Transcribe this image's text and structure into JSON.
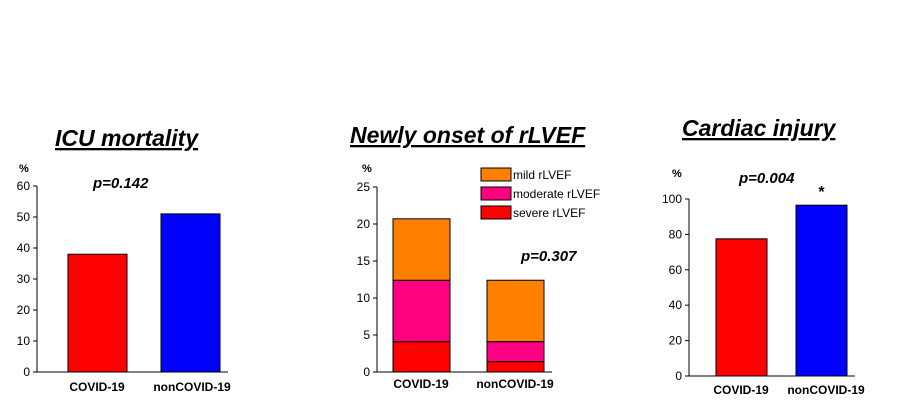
{
  "chart_data": [
    {
      "type": "bar",
      "title": "ICU mortality",
      "annotation": "p=0.142",
      "unit_label": "%",
      "categories": [
        "COVID-19",
        "nonCOVID-19"
      ],
      "values": [
        38,
        51
      ],
      "colors": [
        "#ff0000",
        "#0000ff"
      ],
      "yticks": [
        0,
        10,
        20,
        30,
        40,
        50,
        60
      ],
      "ylim": [
        0,
        60
      ],
      "grid": false
    },
    {
      "type": "bar",
      "stacked": true,
      "title": "Newly onset of rLVEF",
      "annotation": "p=0.307",
      "unit_label": "%",
      "categories": [
        "COVID-19",
        "nonCOVID-19"
      ],
      "series": [
        {
          "name": "severe rLVEF",
          "color": "#ff0000",
          "values": [
            4.1,
            1.4
          ]
        },
        {
          "name": "moderate rLVEF",
          "color": "#ff0080",
          "values": [
            8.3,
            2.7
          ]
        },
        {
          "name": "mild rLVEF",
          "color": "#ff8000",
          "values": [
            8.3,
            8.3
          ]
        }
      ],
      "legend": {
        "position": "top-right",
        "order": [
          "mild rLVEF",
          "moderate rLVEF",
          "severe rLVEF"
        ]
      },
      "yticks": [
        0,
        5,
        10,
        15,
        20,
        25
      ],
      "ylim": [
        0,
        25
      ],
      "grid": false
    },
    {
      "type": "bar",
      "title": "Cardiac injury",
      "annotation": "p=0.004",
      "unit_label": "%",
      "categories": [
        "COVID-19",
        "nonCOVID-19"
      ],
      "values": [
        77.5,
        96.5
      ],
      "colors": [
        "#ff0000",
        "#0000ff"
      ],
      "bar_markers": [
        "",
        "*"
      ],
      "yticks": [
        0,
        20,
        40,
        60,
        80,
        100
      ],
      "ylim": [
        0,
        100
      ],
      "grid": false
    }
  ]
}
